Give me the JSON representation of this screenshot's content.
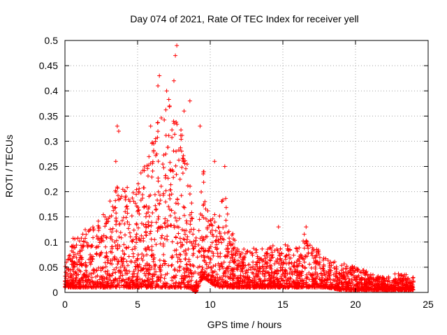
{
  "chart_data": {
    "type": "scatter",
    "title": "Day 074 of 2021, Rate Of TEC Index for receiver yell",
    "xlabel": "GPS time / hours",
    "ylabel": "ROTI / TECUs",
    "xlim": [
      0,
      25
    ],
    "ylim": [
      0,
      0.5
    ],
    "xticks": [
      0,
      5,
      10,
      15,
      20,
      25
    ],
    "yticks": [
      0,
      0.05,
      0.1,
      0.15,
      0.2,
      0.25,
      0.3,
      0.35,
      0.4,
      0.45,
      0.5
    ],
    "grid": true,
    "marker": "+",
    "color": "#ff0000",
    "envelope": {
      "hours": [
        0,
        0.5,
        1,
        1.5,
        2,
        2.5,
        3,
        3.5,
        4,
        4.5,
        5,
        5.5,
        6,
        6.5,
        7,
        7.5,
        8,
        8.5,
        9,
        9.5,
        10,
        10.5,
        11,
        11.5,
        12,
        13,
        14,
        15,
        16,
        16.5,
        17,
        18,
        19,
        20,
        21,
        22,
        23,
        24
      ],
      "upper": [
        0.05,
        0.11,
        0.12,
        0.13,
        0.14,
        0.15,
        0.18,
        0.22,
        0.22,
        0.2,
        0.22,
        0.27,
        0.3,
        0.36,
        0.38,
        0.39,
        0.33,
        0.25,
        0.12,
        0.26,
        0.15,
        0.17,
        0.2,
        0.12,
        0.09,
        0.09,
        0.09,
        0.1,
        0.09,
        0.12,
        0.1,
        0.07,
        0.06,
        0.05,
        0.04,
        0.03,
        0.04,
        0.03
      ],
      "lower": [
        0.01,
        0.01,
        0.01,
        0.01,
        0.01,
        0.01,
        0.01,
        0.01,
        0.01,
        0.01,
        0.01,
        0.01,
        0.01,
        0.01,
        0.01,
        0.01,
        0.01,
        0.01,
        0.0,
        0.03,
        0.02,
        0.01,
        0.01,
        0.01,
        0.01,
        0.01,
        0.01,
        0.01,
        0.01,
        0.01,
        0.01,
        0.01,
        0.005,
        0.005,
        0.005,
        0.005,
        0.005,
        0.005
      ]
    },
    "outliers": [
      {
        "x": 3.6,
        "y": 0.33
      },
      {
        "x": 3.7,
        "y": 0.32
      },
      {
        "x": 3.5,
        "y": 0.26
      },
      {
        "x": 5.9,
        "y": 0.33
      },
      {
        "x": 6.4,
        "y": 0.41
      },
      {
        "x": 6.5,
        "y": 0.43
      },
      {
        "x": 7.0,
        "y": 0.4
      },
      {
        "x": 7.2,
        "y": 0.37
      },
      {
        "x": 7.5,
        "y": 0.42
      },
      {
        "x": 7.6,
        "y": 0.47
      },
      {
        "x": 7.7,
        "y": 0.49
      },
      {
        "x": 8.2,
        "y": 0.36
      },
      {
        "x": 8.6,
        "y": 0.38
      },
      {
        "x": 9.3,
        "y": 0.33
      },
      {
        "x": 10.3,
        "y": 0.26
      },
      {
        "x": 11.0,
        "y": 0.25
      },
      {
        "x": 14.7,
        "y": 0.13
      },
      {
        "x": 16.6,
        "y": 0.13
      }
    ]
  }
}
